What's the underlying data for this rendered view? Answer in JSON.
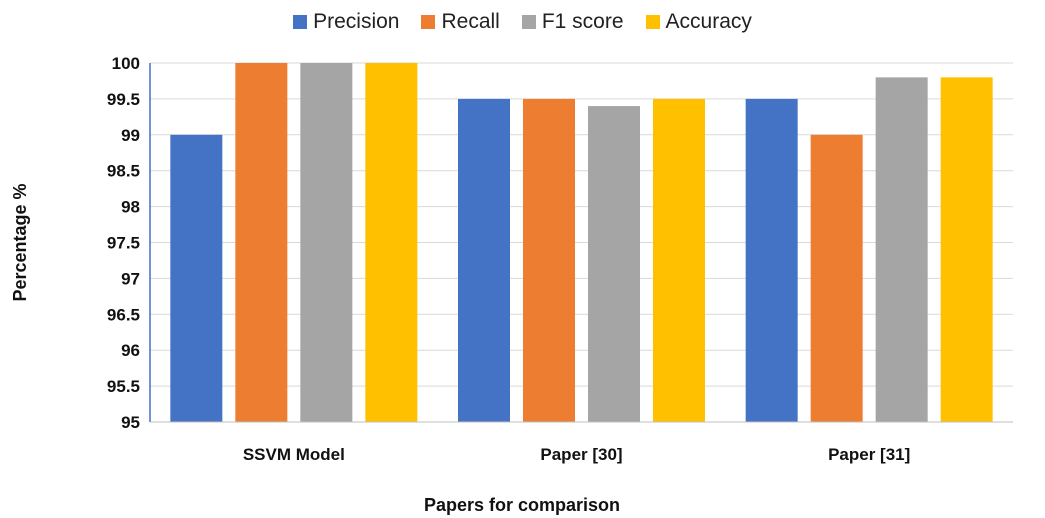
{
  "chart_data": {
    "type": "bar",
    "categories": [
      "SSVM Model",
      "Paper [30]",
      "Paper [31]"
    ],
    "series": [
      {
        "name": "Precision",
        "color": "#4472C4",
        "values": [
          99.0,
          99.5,
          99.5
        ]
      },
      {
        "name": "Recall",
        "color": "#ED7D31",
        "values": [
          100.0,
          99.5,
          99.0
        ]
      },
      {
        "name": "F1 score",
        "color": "#A5A5A5",
        "values": [
          100.0,
          99.4,
          99.8
        ]
      },
      {
        "name": "Accuracy",
        "color": "#FFC000",
        "values": [
          100.0,
          99.5,
          99.8
        ]
      }
    ],
    "xlabel": "Papers for comparison",
    "ylabel": "Percentage %",
    "ylim": [
      95,
      100
    ],
    "yticks": [
      "95",
      "95.5",
      "96",
      "96.5",
      "97",
      "97.5",
      "98",
      "98.5",
      "99",
      "99.5",
      "100"
    ],
    "grid": true,
    "legend": "top-center"
  }
}
